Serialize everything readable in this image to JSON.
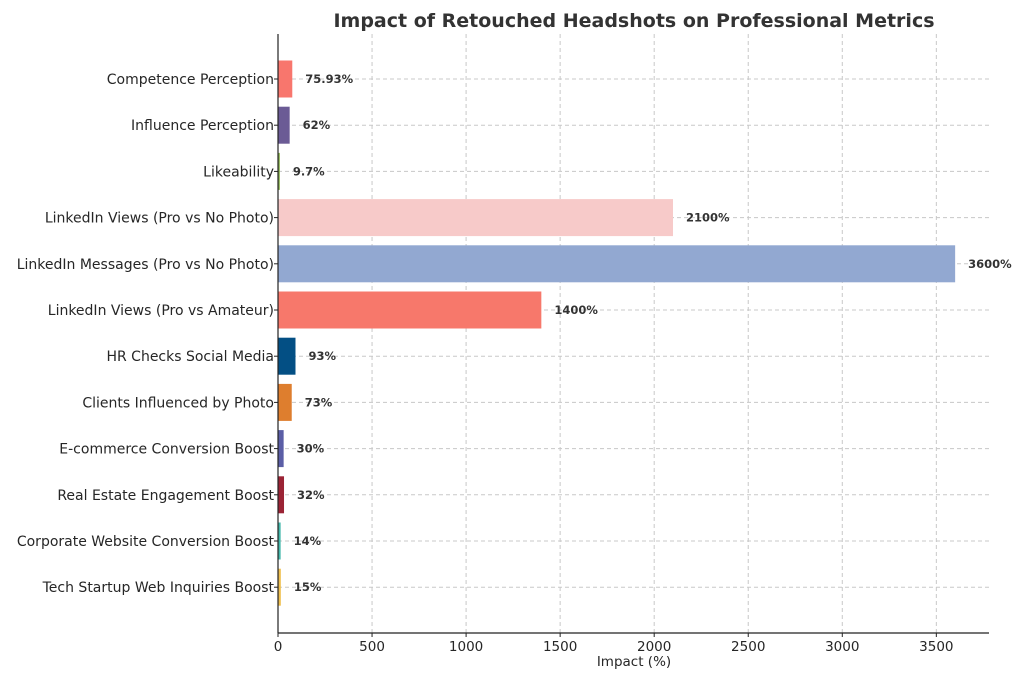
{
  "chart_data": {
    "type": "bar",
    "orientation": "horizontal",
    "title": "Impact of Retouched Headshots on Professional Metrics",
    "xlabel": "Impact (%)",
    "ylabel": "",
    "xlim": [
      0,
      3780
    ],
    "xticks": [
      0,
      500,
      1000,
      1500,
      2000,
      2500,
      3000,
      3500
    ],
    "grid": true,
    "categories": [
      "Competence Perception",
      "Influence Perception",
      "Likeability",
      "LinkedIn Views (Pro vs No Photo)",
      "LinkedIn Messages (Pro vs No Photo)",
      "LinkedIn Views (Pro vs Amateur)",
      "HR Checks Social Media",
      "Clients Influenced by Photo",
      "E-commerce Conversion Boost",
      "Real Estate Engagement Boost",
      "Corporate Website Conversion Boost",
      "Tech Startup Web Inquiries Boost"
    ],
    "values": [
      75.93,
      62,
      9.7,
      2100,
      3600,
      1400,
      93,
      73,
      30,
      32,
      14,
      15
    ],
    "value_labels": [
      "75.93%",
      "62%",
      "9.7%",
      "2100%",
      "3600%",
      "1400%",
      "93%",
      "73%",
      "30%",
      "32%",
      "14%",
      "15%"
    ],
    "colors": [
      "#f8766d",
      "#6b5b95",
      "#88b04b",
      "#f7cac9",
      "#92a8d1",
      "#f7786b",
      "#034f84",
      "#de7e2e",
      "#5b5ea6",
      "#9b2335",
      "#45b8ac",
      "#efc050"
    ]
  }
}
